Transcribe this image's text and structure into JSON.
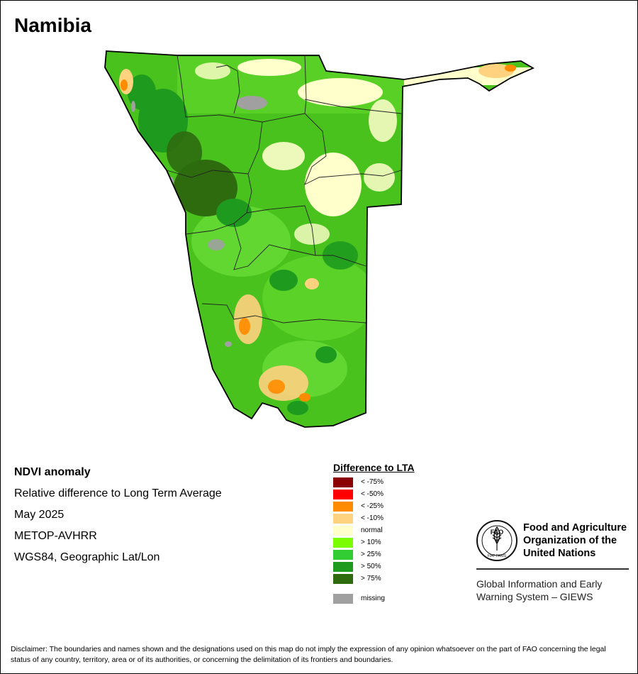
{
  "title": "Namibia",
  "info": {
    "product": "NDVI anomaly",
    "description": "Relative difference to Long Term Average",
    "period": "May 2025",
    "sensor": "METOP-AVHRR",
    "projection": "WGS84, Geographic Lat/Lon"
  },
  "legend": {
    "title": "Difference to LTA",
    "items": [
      {
        "label": "< -75%",
        "color": "#8b0000"
      },
      {
        "label": "< -50%",
        "color": "#ff0000"
      },
      {
        "label": "< -25%",
        "color": "#ff8c00"
      },
      {
        "label": "< -10%",
        "color": "#ffd27f"
      },
      {
        "label": "normal",
        "color": "#ffffcc"
      },
      {
        "label": "> 10%",
        "color": "#7cfc00"
      },
      {
        "label": "> 25%",
        "color": "#32cd32"
      },
      {
        "label": "> 50%",
        "color": "#1e9a1e"
      },
      {
        "label": "> 75%",
        "color": "#2e6b0f"
      },
      {
        "label": "missing",
        "color": "#a0a0a0"
      }
    ]
  },
  "logo": {
    "org_name": "Food and Agriculture Organization of the United Nations",
    "logo_text": "FAO",
    "motto": "FIAT PANIS",
    "system_name": "Global Information and Early Warning System – GIEWS"
  },
  "disclaimer": "Disclaimer: The boundaries and names shown and the designations used on this map do not imply the expression of any opinion whatsoever on the part of FAO concerning the legal status of any country, territory, area or of its authorities, or concerning the delimitation of its frontiers and boundaries."
}
